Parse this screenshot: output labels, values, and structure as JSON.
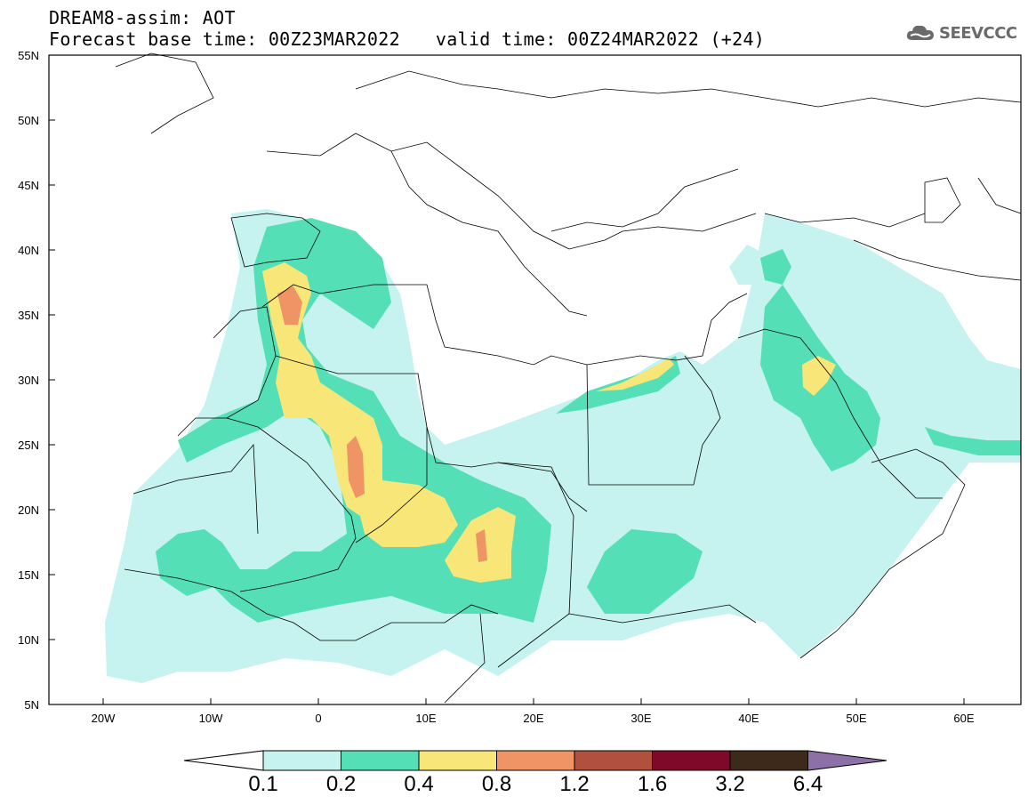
{
  "title": {
    "line1": "DREAM8-assim: AOT",
    "base": "Forecast base time: 00Z23MAR2022",
    "valid": "valid time: 00Z24MAR2022 (+24)"
  },
  "logo": {
    "text": "SEEVCCC",
    "icon": "cloud-icon"
  },
  "map": {
    "lon_range": [
      -25,
      65
    ],
    "lat_range": [
      5,
      55
    ],
    "lat_labels": [
      "55N",
      "50N",
      "45N",
      "40N",
      "35N",
      "30N",
      "25N",
      "20N",
      "15N",
      "10N",
      "5N"
    ],
    "lon_labels": [
      "20W",
      "10W",
      "0",
      "10E",
      "20E",
      "30E",
      "40E",
      "50E",
      "60E"
    ]
  },
  "colorbar": {
    "labels": [
      "0.1",
      "0.2",
      "0.4",
      "0.8",
      "1.2",
      "1.6",
      "3.2",
      "6.4"
    ],
    "colors": [
      "#ffffff",
      "#c6f3ef",
      "#55dfb6",
      "#f8e678",
      "#ef9464",
      "#b0503f",
      "#7c0a28",
      "#3e2a1a",
      "#8e70a8"
    ]
  }
}
